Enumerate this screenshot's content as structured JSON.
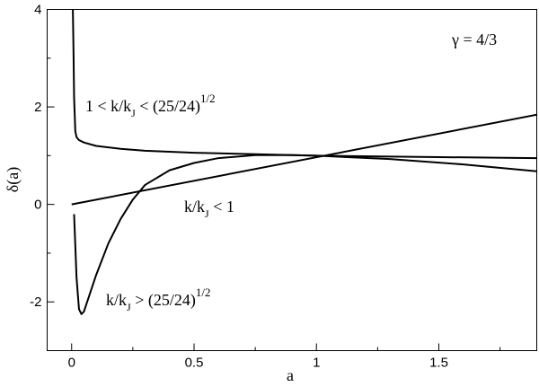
{
  "chart_data": {
    "type": "line",
    "x_label": "a",
    "y_label": "δ(a)",
    "xlim": [
      -0.1,
      1.9
    ],
    "ylim": [
      -3,
      4
    ],
    "xticks": [
      0,
      0.5,
      1,
      1.5
    ],
    "yticks": [
      -2,
      0,
      2,
      4
    ],
    "xminorticks": [
      0.25,
      0.75,
      1.25,
      1.75
    ],
    "yminorticks": [
      -3,
      -1,
      1,
      3
    ],
    "series": [
      {
        "color": "#000000",
        "x": [
          0.005,
          0.008,
          0.01,
          0.015,
          0.02,
          0.03,
          0.05,
          0.1,
          0.2,
          0.3,
          0.5,
          0.75,
          1,
          1.5,
          1.9
        ],
        "values": [
          4,
          3,
          2.2,
          1.5,
          1.38,
          1.32,
          1.27,
          1.2,
          1.14,
          1.1,
          1.06,
          1.03,
          1.0,
          0.97,
          0.95
        ]
      },
      {
        "color": "#000000",
        "x": [
          0.01,
          0.02,
          0.03,
          0.04,
          0.05,
          0.07,
          0.1,
          0.15,
          0.2,
          0.25,
          0.3,
          0.4,
          0.5,
          0.6,
          0.75,
          0.9,
          1,
          1.3,
          1.6,
          1.9
        ],
        "values": [
          -0.2,
          -1.5,
          -2.15,
          -2.25,
          -2.2,
          -1.9,
          -1.45,
          -0.8,
          -0.3,
          0.1,
          0.4,
          0.7,
          0.85,
          0.95,
          1.01,
          1.01,
          1.0,
          0.93,
          0.82,
          0.68
        ]
      },
      {
        "color": "#000000",
        "x": [
          0,
          1.9
        ],
        "values": [
          0,
          1.84
        ]
      }
    ],
    "annotations": [
      {
        "parts": [
          {
            "text": "γ = 4/3"
          }
        ]
      },
      {
        "parts": [
          {
            "text": "1 < k/k"
          },
          {
            "text": "J",
            "shift": "sub"
          },
          {
            "text": " < (25/24)"
          },
          {
            "text": "1/2",
            "shift": "sup"
          }
        ]
      },
      {
        "parts": [
          {
            "text": "k/k"
          },
          {
            "text": "J",
            "shift": "sub"
          },
          {
            "text": " < 1"
          }
        ]
      },
      {
        "parts": [
          {
            "text": "k/k"
          },
          {
            "text": "J",
            "shift": "sub"
          },
          {
            "text": " > (25/24)"
          },
          {
            "text": "1/2",
            "shift": "sup"
          }
        ]
      }
    ]
  }
}
